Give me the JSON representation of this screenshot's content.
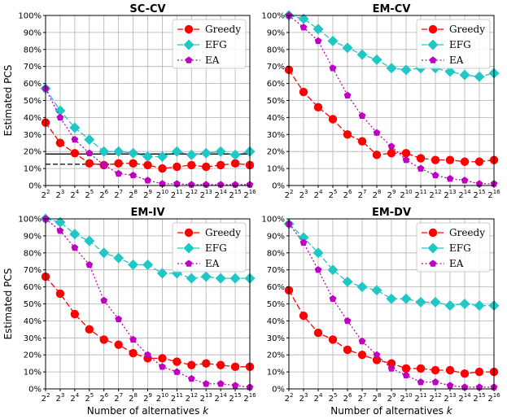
{
  "colors": {
    "greedy": "#ff0000",
    "efg": "#1fc7c7",
    "ea": "#c000c0"
  },
  "chart_data": [
    {
      "type": "line",
      "title": "SC-CV",
      "xlabel": "",
      "ylabel": "Estimated PCS",
      "x": [
        2,
        3,
        4,
        5,
        6,
        7,
        8,
        9,
        10,
        11,
        12,
        13,
        14,
        15,
        16
      ],
      "ylim": [
        0,
        100
      ],
      "series": [
        {
          "name": "Greedy",
          "values": [
            37,
            25,
            19,
            13,
            12,
            13,
            13,
            12,
            10,
            11,
            12,
            11,
            12,
            13,
            12
          ]
        },
        {
          "name": "EFG",
          "values": [
            57,
            44,
            34,
            27,
            20,
            20,
            19,
            17,
            17,
            20,
            18,
            19,
            20,
            18,
            20
          ]
        },
        {
          "name": "EA",
          "values": [
            57,
            40,
            27,
            19,
            12,
            7,
            6,
            3,
            1,
            1,
            0.5,
            0.5,
            0.5,
            0.5,
            0.5
          ]
        }
      ],
      "reference_lines": [
        18.5,
        12.5
      ]
    },
    {
      "type": "line",
      "title": "EM-CV",
      "xlabel": "",
      "ylabel": "",
      "x": [
        2,
        3,
        4,
        5,
        6,
        7,
        8,
        9,
        10,
        11,
        12,
        13,
        14,
        15,
        16
      ],
      "ylim": [
        0,
        100
      ],
      "series": [
        {
          "name": "Greedy",
          "values": [
            68,
            55,
            46,
            39,
            30,
            26,
            18,
            19,
            19,
            16,
            15,
            15,
            14,
            14,
            15
          ]
        },
        {
          "name": "EFG",
          "values": [
            100,
            98,
            92,
            85,
            81,
            77,
            74,
            69,
            68,
            69,
            69,
            67,
            65,
            64,
            66
          ]
        },
        {
          "name": "EA",
          "values": [
            100,
            93,
            85,
            69,
            53,
            41,
            31,
            23,
            15,
            10,
            6,
            4,
            3,
            1,
            1
          ]
        }
      ]
    },
    {
      "type": "line",
      "title": "EM-IV",
      "xlabel": "Number of alternatives k",
      "ylabel": "Estimated PCS",
      "x": [
        2,
        3,
        4,
        5,
        6,
        7,
        8,
        9,
        10,
        11,
        12,
        13,
        14,
        15,
        16
      ],
      "ylim": [
        0,
        100
      ],
      "series": [
        {
          "name": "Greedy",
          "values": [
            66,
            56,
            44,
            35,
            29,
            26,
            21,
            18,
            18,
            16,
            14,
            15,
            14,
            13,
            13
          ]
        },
        {
          "name": "EFG",
          "values": [
            100,
            98,
            91,
            87,
            80,
            77,
            73,
            73,
            68,
            68,
            65,
            66,
            65,
            65,
            65
          ]
        },
        {
          "name": "EA",
          "values": [
            100,
            93,
            83,
            73,
            52,
            41,
            29,
            20,
            13,
            10,
            6,
            3,
            3,
            2,
            1
          ]
        }
      ]
    },
    {
      "type": "line",
      "title": "EM-DV",
      "xlabel": "Number of alternatives k",
      "ylabel": "",
      "x": [
        2,
        3,
        4,
        5,
        6,
        7,
        8,
        9,
        10,
        11,
        12,
        13,
        14,
        15,
        16
      ],
      "ylim": [
        0,
        100
      ],
      "series": [
        {
          "name": "Greedy",
          "values": [
            58,
            43,
            33,
            29,
            23,
            20,
            17,
            15,
            12,
            12,
            11,
            11,
            9,
            10,
            10
          ]
        },
        {
          "name": "EFG",
          "values": [
            97,
            89,
            80,
            70,
            63,
            60,
            58,
            53,
            53,
            51,
            51,
            49,
            50,
            49,
            49
          ]
        },
        {
          "name": "EA",
          "values": [
            97,
            86,
            70,
            53,
            40,
            28,
            20,
            12,
            8,
            4,
            4,
            2,
            1,
            1,
            1
          ]
        }
      ]
    }
  ],
  "yticks": [
    "0%",
    "10%",
    "20%",
    "30%",
    "40%",
    "50%",
    "60%",
    "70%",
    "80%",
    "90%",
    "100%"
  ],
  "xtick_base": "2"
}
